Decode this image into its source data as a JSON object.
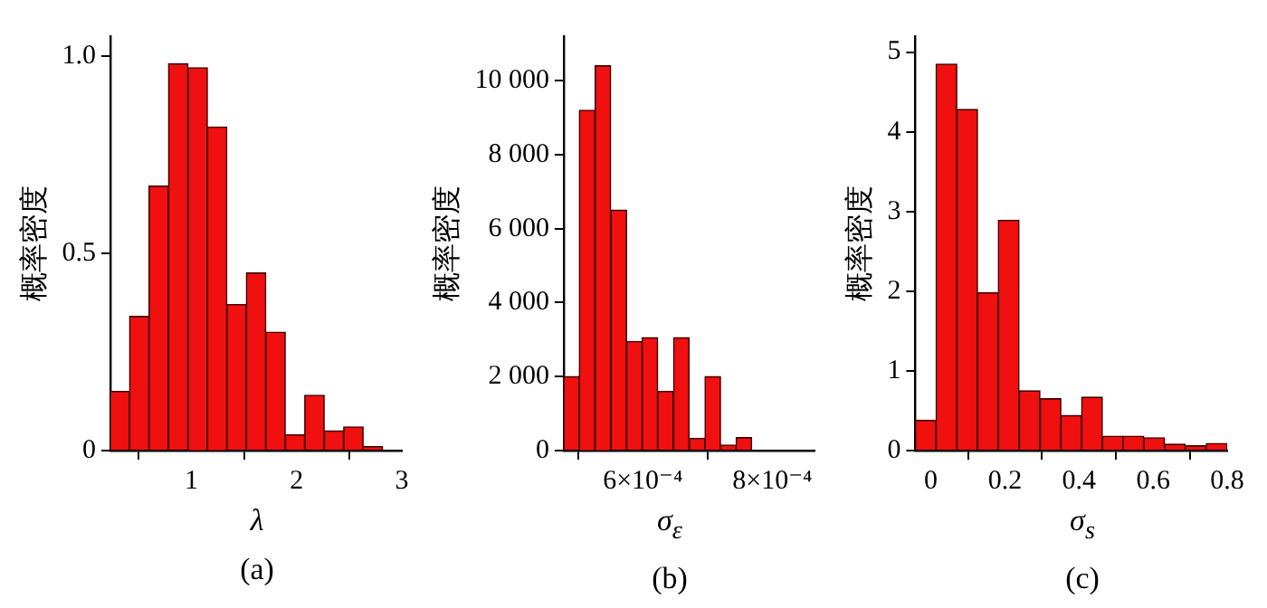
{
  "chart_data": [
    {
      "type": "histogram",
      "title": "(a)",
      "xlabel": "λ",
      "ylabel": "概率密度",
      "color": "#f01010",
      "bins": [
        0.23,
        0.41,
        0.6,
        0.78,
        0.97,
        1.15,
        1.34,
        1.52,
        1.71,
        1.89,
        2.08,
        2.26,
        2.45,
        2.63,
        2.82,
        3.0
      ],
      "values": [
        0.15,
        0.34,
        0.67,
        0.98,
        0.97,
        0.82,
        0.37,
        0.45,
        0.3,
        0.04,
        0.14,
        0.05,
        0.06,
        0.01,
        0
      ],
      "xlim": [
        0.23,
        3.0
      ],
      "ylim": [
        0,
        1.05
      ],
      "xticks": [
        1,
        2,
        3
      ],
      "yticks": [
        0,
        0.5,
        {
          "value": 1,
          "label": "1.0"
        }
      ]
    },
    {
      "type": "histogram",
      "title": "(b)",
      "xlabel": "σ$_{ε}$",
      "ylabel": "概率密度",
      "color": "#f01010",
      "bins": [
        0.000478,
        0.000502,
        0.000526,
        0.000551,
        0.000575,
        0.000599,
        0.000623,
        0.000647,
        0.000672,
        0.000696,
        0.00072,
        0.000744,
        0.000768
      ],
      "values": [
        2000,
        9200,
        10400,
        6500,
        2950,
        3050,
        1600,
        3050,
        330,
        2000,
        150,
        350
      ],
      "xlim": [
        0.000478,
        0.000865
      ],
      "ylim": [
        0,
        11200
      ],
      "xticks": [
        {
          "value": 0.0006,
          "label": "6×10⁻⁴"
        },
        {
          "value": 0.0008,
          "label": "8×10⁻⁴"
        }
      ],
      "yticks": [
        0,
        {
          "value": 2000,
          "label": "2 000"
        },
        {
          "value": 4000,
          "label": "4 000"
        },
        {
          "value": 6000,
          "label": "6 000"
        },
        {
          "value": 8000,
          "label": "8 000"
        },
        {
          "value": 10000,
          "label": "10 000"
        }
      ]
    },
    {
      "type": "histogram",
      "title": "(c)",
      "xlabel": "σ$_{s}$",
      "ylabel": "概率密度",
      "color": "#f01010",
      "bins": [
        -0.042,
        0.014,
        0.07,
        0.126,
        0.182,
        0.238,
        0.295,
        0.351,
        0.407,
        0.463,
        0.519,
        0.575,
        0.631,
        0.687,
        0.743,
        0.8
      ],
      "values": [
        0.38,
        4.85,
        4.28,
        1.98,
        2.89,
        0.75,
        0.65,
        0.44,
        0.67,
        0.18,
        0.18,
        0.16,
        0.08,
        0.06,
        0.09
      ],
      "xlim": [
        -0.042,
        0.8
      ],
      "ylim": [
        0,
        5.2
      ],
      "xticks": [
        0,
        0.2,
        0.4,
        0.6,
        0.8
      ],
      "yticks": [
        0,
        1,
        2,
        3,
        4,
        5
      ]
    }
  ]
}
